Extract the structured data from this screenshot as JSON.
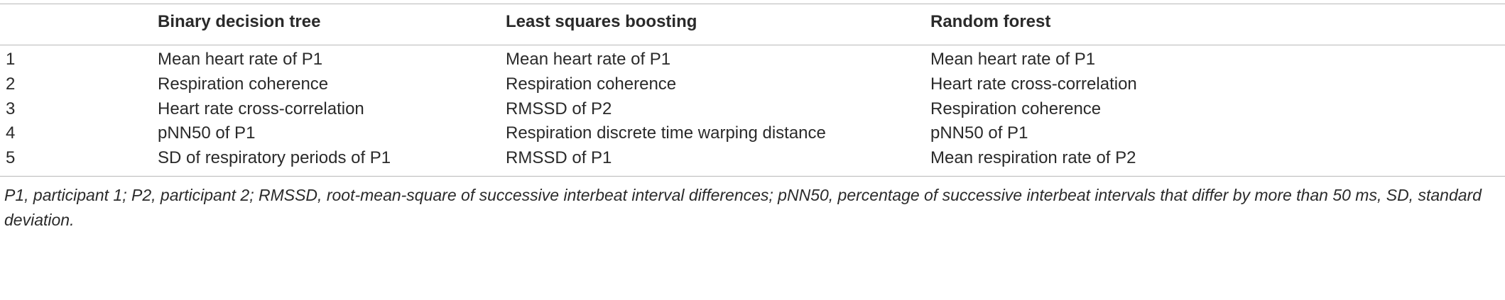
{
  "table": {
    "headers": [
      "",
      "Binary decision tree",
      "Least squares boosting",
      "Random forest"
    ],
    "rows": [
      [
        "1",
        "Mean heart rate of P1",
        "Mean heart rate of P1",
        "Mean heart rate of P1"
      ],
      [
        "2",
        "Respiration coherence",
        "Respiration coherence",
        "Heart rate cross-correlation"
      ],
      [
        "3",
        "Heart rate cross-correlation",
        "RMSSD of P2",
        "Respiration coherence"
      ],
      [
        "4",
        "pNN50 of P1",
        "Respiration discrete time warping distance",
        "pNN50 of P1"
      ],
      [
        "5",
        "SD of respiratory periods of P1",
        "RMSSD of P1",
        "Mean respiration rate of P2"
      ]
    ]
  },
  "footnote": "P1, participant 1; P2, participant 2; RMSSD, root-mean-square of successive interbeat interval differences; pNN50, percentage of successive interbeat intervals that differ by more than 50 ms, SD, standard deviation."
}
